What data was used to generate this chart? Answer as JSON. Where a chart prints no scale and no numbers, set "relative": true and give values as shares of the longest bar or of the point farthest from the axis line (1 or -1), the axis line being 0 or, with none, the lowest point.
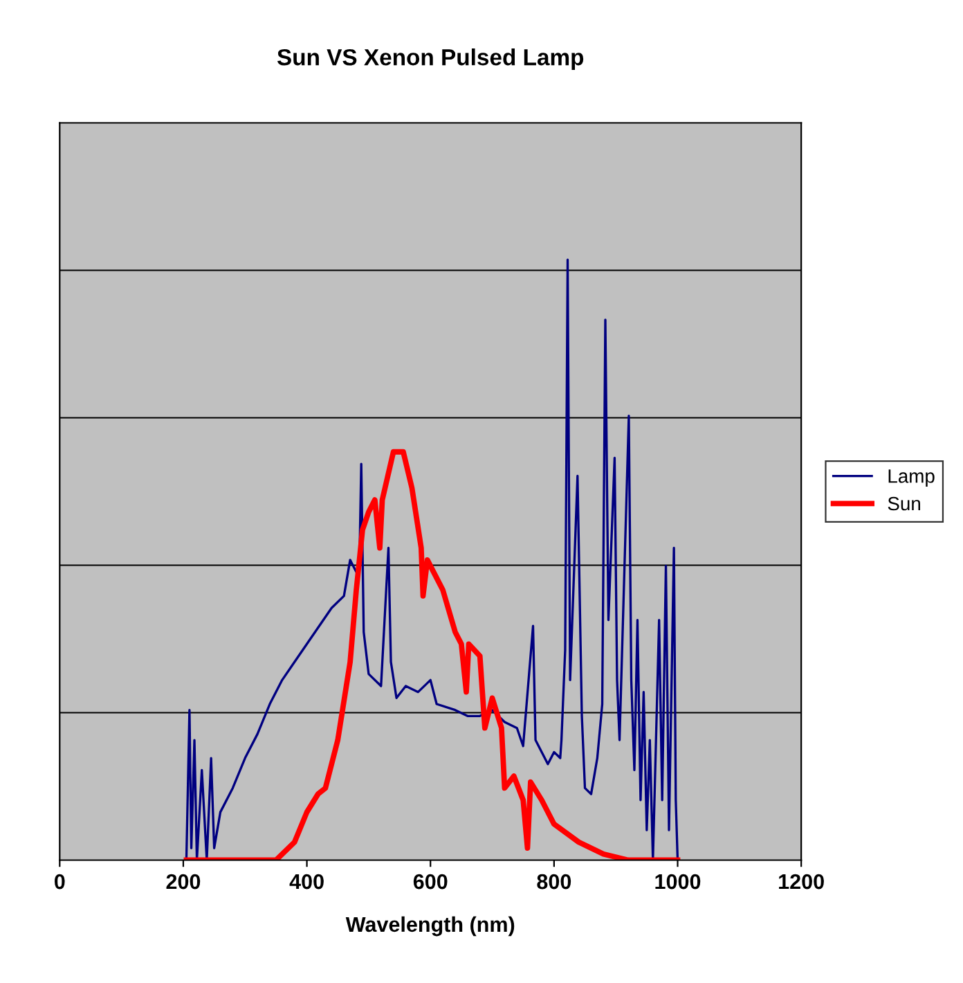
{
  "chart_data": {
    "type": "line",
    "title": "Sun VS Xenon Pulsed Lamp",
    "xlabel": "Wavelength (nm)",
    "relative": true,
    "xlim": [
      0,
      1200
    ],
    "xticks": [
      0,
      200,
      400,
      600,
      800,
      1000,
      1200
    ],
    "grid": "y",
    "legend": "right",
    "tick_labels": "x",
    "series": [
      {
        "name": "Lamp",
        "color": "#000080",
        "x": [
          205,
          210,
          213,
          218,
          222,
          230,
          238,
          245,
          250,
          260,
          280,
          300,
          320,
          340,
          360,
          380,
          400,
          420,
          440,
          460,
          470,
          480,
          485,
          488,
          492,
          500,
          520,
          532,
          536,
          545,
          560,
          580,
          600,
          610,
          640,
          660,
          680,
          700,
          720,
          740,
          750,
          766,
          770,
          790,
          800,
          810,
          812,
          818,
          822,
          826,
          838,
          845,
          850,
          860,
          870,
          878,
          883,
          888,
          898,
          902,
          906,
          921,
          925,
          930,
          935,
          940,
          945,
          950,
          955,
          960,
          970,
          975,
          981,
          986,
          994,
          997,
          1000
        ],
        "values": [
          0,
          0.25,
          0.02,
          0.2,
          0,
          0.15,
          0,
          0.17,
          0.02,
          0.08,
          0.12,
          0.17,
          0.21,
          0.26,
          0.3,
          0.33,
          0.36,
          0.39,
          0.42,
          0.44,
          0.5,
          0.48,
          0.49,
          0.66,
          0.38,
          0.31,
          0.29,
          0.52,
          0.33,
          0.27,
          0.29,
          0.28,
          0.3,
          0.26,
          0.25,
          0.24,
          0.24,
          0.25,
          0.23,
          0.22,
          0.19,
          0.39,
          0.2,
          0.16,
          0.18,
          0.17,
          0.2,
          0.35,
          1.0,
          0.3,
          0.64,
          0.24,
          0.12,
          0.11,
          0.17,
          0.26,
          0.9,
          0.4,
          0.67,
          0.3,
          0.2,
          0.74,
          0.3,
          0.15,
          0.4,
          0.1,
          0.28,
          0.05,
          0.2,
          0,
          0.4,
          0.1,
          0.49,
          0.05,
          0.52,
          0.1,
          0
        ]
      },
      {
        "name": "Sun",
        "color": "#ff0000",
        "x": [
          205,
          350,
          380,
          400,
          418,
          430,
          450,
          470,
          480,
          490,
          500,
          510,
          518,
          522,
          540,
          556,
          570,
          585,
          588,
          595,
          620,
          640,
          650,
          658,
          662,
          680,
          688,
          700,
          715,
          720,
          735,
          750,
          757,
          762,
          780,
          800,
          840,
          880,
          920,
          1000
        ],
        "values": [
          0,
          0,
          0.03,
          0.08,
          0.11,
          0.12,
          0.2,
          0.33,
          0.45,
          0.55,
          0.58,
          0.6,
          0.52,
          0.6,
          0.68,
          0.68,
          0.62,
          0.52,
          0.44,
          0.5,
          0.45,
          0.38,
          0.36,
          0.28,
          0.36,
          0.34,
          0.22,
          0.27,
          0.22,
          0.12,
          0.14,
          0.1,
          0.02,
          0.13,
          0.1,
          0.06,
          0.03,
          0.01,
          0,
          0
        ]
      }
    ]
  }
}
